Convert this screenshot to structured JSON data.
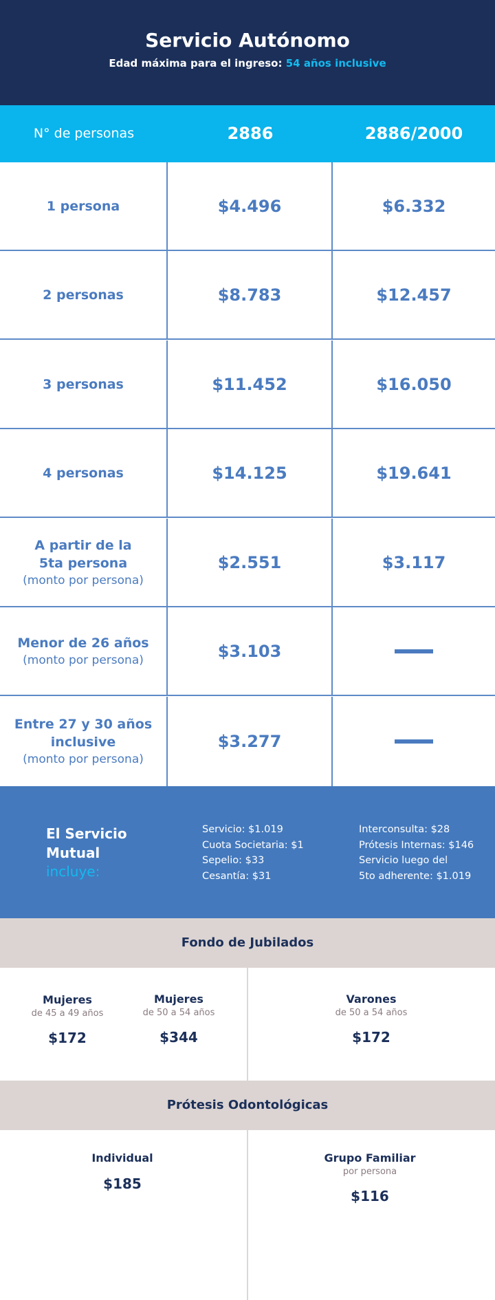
{
  "header": {
    "title": "Servicio Autónomo",
    "subtitle_prefix": "Edad máxima para el ingreso:",
    "subtitle_highlight": "54 años inclusive"
  },
  "table": {
    "columns": [
      "N° de personas",
      "2886",
      "2886/2000"
    ],
    "rows": [
      {
        "label": "1 persona",
        "note": "",
        "v1": "$4.496",
        "v2": "$6.332"
      },
      {
        "label": "2 personas",
        "note": "",
        "v1": "$8.783",
        "v2": "$12.457"
      },
      {
        "label": "3 personas",
        "note": "",
        "v1": "$11.452",
        "v2": "$16.050"
      },
      {
        "label": "4 personas",
        "note": "",
        "v1": "$14.125",
        "v2": "$19.641"
      },
      {
        "label_line1": "A partir de la",
        "label_line2": "5ta persona",
        "note": "(monto por persona)",
        "v1": "$2.551",
        "v2": "$3.117"
      },
      {
        "label": "Menor de 26 años",
        "note": "(monto por persona)",
        "v1": "$3.103",
        "v2": ""
      },
      {
        "label_line1": "Entre 27 y 30 años",
        "label_line2": "inclusive",
        "note": "(monto por persona)",
        "v1": "$3.277",
        "v2": ""
      }
    ]
  },
  "mutual": {
    "title_line1": "El Servicio",
    "title_line2": "Mutual",
    "includes": "incluye:",
    "list1": [
      "Servicio: $1.019",
      "Cuota Societaria: $1",
      "Sepelio: $33",
      "Cesantía: $31"
    ],
    "list2": [
      "Interconsulta: $28",
      "Prótesis Internas: $146",
      "Servicio luego del",
      "5to adherente: $1.019"
    ]
  },
  "fondo": {
    "title": "Fondo de Jubilados",
    "groups": [
      {
        "label": "Mujeres",
        "sub": "de 45 a 49 años",
        "price": "$172"
      },
      {
        "label": "Mujeres",
        "sub": "de 50 a 54 años",
        "price": "$344"
      },
      {
        "label": "Varones",
        "sub": "de 50 a 54 años",
        "price": "$172"
      }
    ]
  },
  "protesis": {
    "title": "Prótesis Odontológicas",
    "groups": [
      {
        "label": "Individual",
        "sub": "",
        "price": "$185"
      },
      {
        "label": "Grupo Familiar",
        "sub": "por persona",
        "price": "$116"
      }
    ]
  },
  "colors": {
    "navy": "#1b2f59",
    "cyan": "#0ab4ec",
    "blue": "#4479bd",
    "beige": "#dcd4d2"
  }
}
